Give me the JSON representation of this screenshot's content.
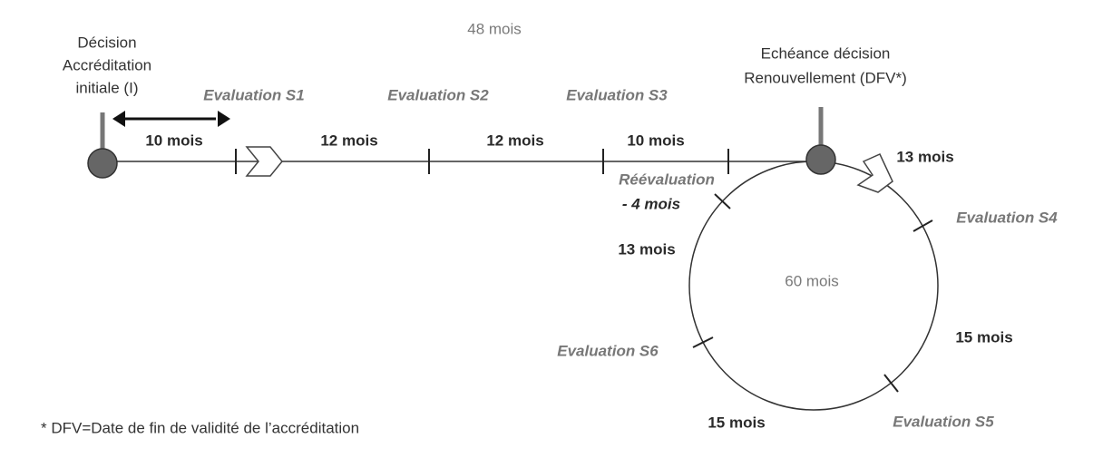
{
  "header": {
    "duration_line": "48 mois",
    "duration_cycle": "60 mois"
  },
  "nodes": [
    {
      "label_lines": [
        "Décision",
        "Accréditation",
        "initiale (I)"
      ]
    },
    {
      "label_lines": [
        "Echéance décision",
        "Renouvellement (DFV*)"
      ]
    }
  ],
  "linear_segments": [
    "10 mois",
    "12 mois",
    "12 mois",
    "10 mois"
  ],
  "linear_evaluations": [
    "Evaluation S1",
    "Evaluation S2",
    "Evaluation S3"
  ],
  "reevaluation": {
    "label": "Réévaluation",
    "offset": "- 4 mois"
  },
  "cycle_segments": [
    "13 mois",
    "15 mois",
    "15 mois",
    "13 mois"
  ],
  "cycle_evaluations": [
    "Evaluation S4",
    "Evaluation S5",
    "Evaluation S6"
  ],
  "footnote": "* DFV=Date de fin de validité de l’accréditation"
}
